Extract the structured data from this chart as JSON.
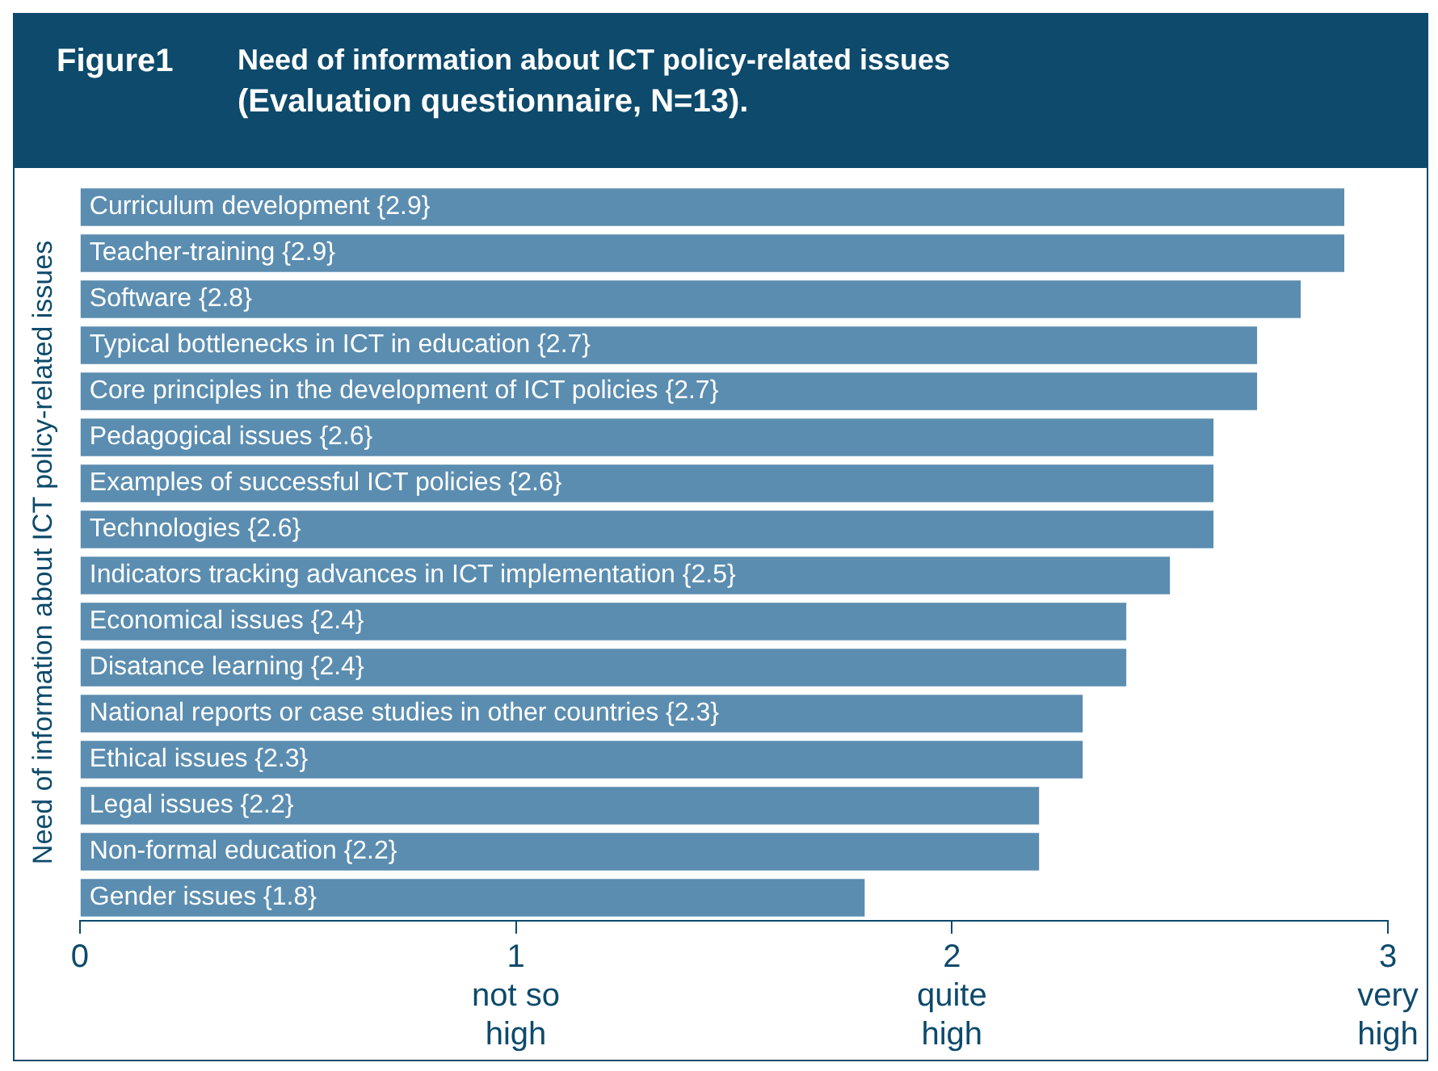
{
  "chart_data": {
    "type": "bar",
    "orientation": "horizontal",
    "title": "Need of information about ICT policy-related issues",
    "subtitle": "(Evaluation questionnaire, N=13).",
    "annotations": [
      "Figure1"
    ],
    "ylabel": "Need of information about ICT policy-related issues",
    "categories": [
      "Curriculum development {2.9}",
      "Teacher-training {2.9}",
      "Software {2.8}",
      "Typical bottlenecks in ICT in education {2.7}",
      "Core principles in the development of ICT policies {2.7}",
      "Pedagogical issues {2.6}",
      "Examples of successful ICT policies {2.6}",
      "Technologies {2.6}",
      "Indicators tracking advances in ICT implementation {2.5}",
      "Economical issues {2.4}",
      "Disatance learning {2.4}",
      "National reports or case studies in other countries {2.3}",
      "Ethical issues {2.3}",
      "Legal issues {2.2}",
      "Non-formal education {2.2}",
      "Gender issues {1.8}"
    ],
    "values": [
      2.9,
      2.9,
      2.8,
      2.7,
      2.7,
      2.6,
      2.6,
      2.6,
      2.5,
      2.4,
      2.4,
      2.3,
      2.3,
      2.2,
      2.2,
      1.8
    ],
    "color": "#5b8db0",
    "xlim": [
      0,
      3
    ],
    "xticks": [
      0,
      {
        "value": 1,
        "label": "1\nnot so\nhigh"
      },
      {
        "value": 2,
        "label": "2\nquite\nhigh"
      },
      {
        "value": 3,
        "label": "3\nvery\nhigh"
      }
    ],
    "grid": false,
    "legend": false
  }
}
